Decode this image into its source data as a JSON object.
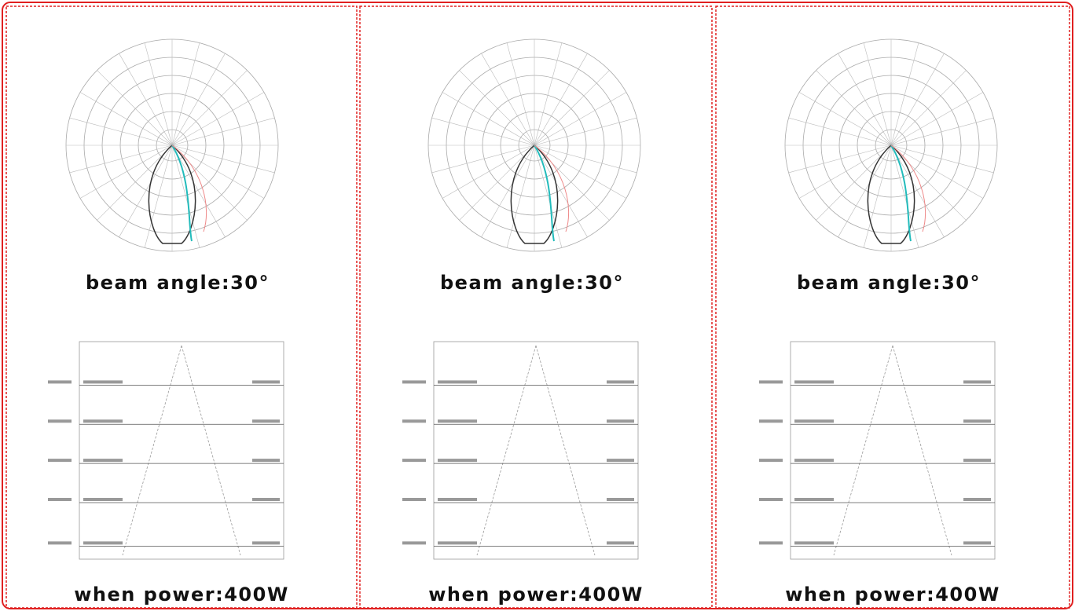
{
  "panels": [
    {
      "beam": "beam angle:30°",
      "power": "when power:400W"
    },
    {
      "beam": "beam angle:30°",
      "power": "when power:400W"
    },
    {
      "beam": "beam angle:30°",
      "power": "when power:400W"
    }
  ]
}
